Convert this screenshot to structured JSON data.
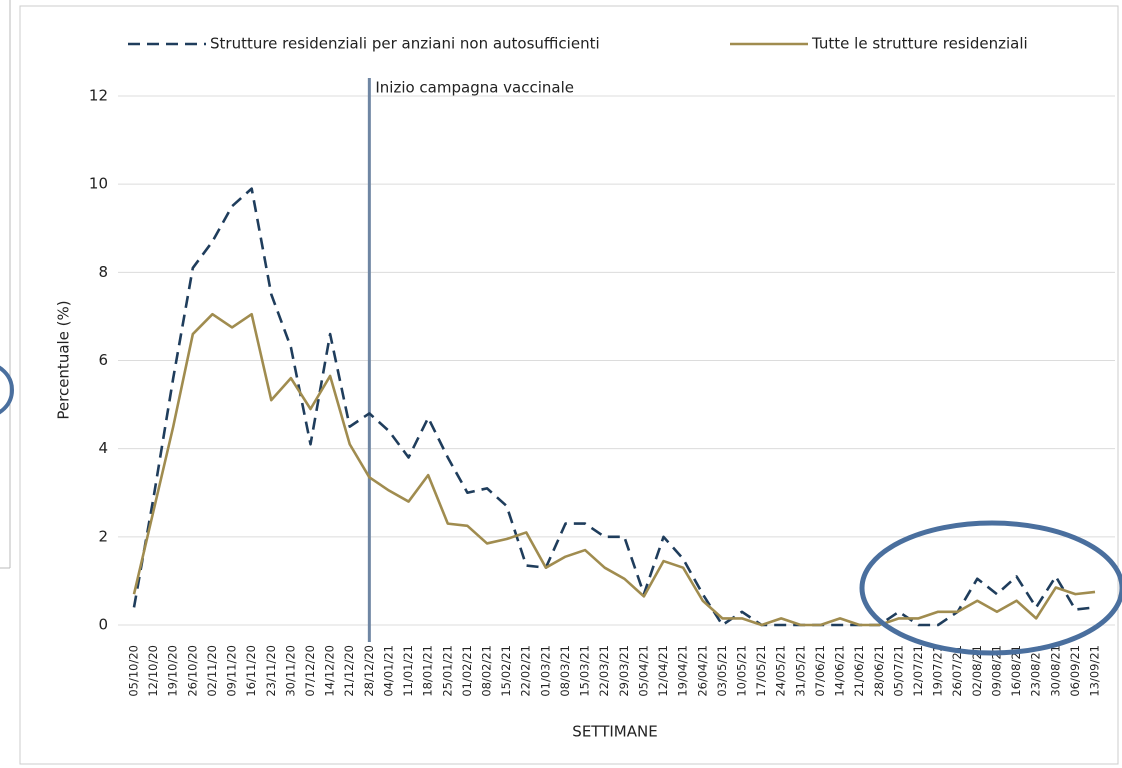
{
  "chart_data": {
    "type": "line",
    "categories": [
      "05/10/20",
      "12/10/20",
      "19/10/20",
      "26/10/20",
      "02/11/20",
      "09/11/20",
      "16/11/20",
      "23/11/20",
      "30/11/20",
      "07/12/20",
      "14/12/20",
      "21/12/20",
      "28/12/20",
      "04/01/21",
      "11/01/21",
      "18/01/21",
      "25/01/21",
      "01/02/21",
      "08/02/21",
      "15/02/21",
      "22/02/21",
      "01/03/21",
      "08/03/21",
      "15/03/21",
      "22/03/21",
      "29/03/21",
      "05/04/21",
      "12/04/21",
      "19/04/21",
      "26/04/21",
      "03/05/21",
      "10/05/21",
      "17/05/21",
      "24/05/21",
      "31/05/21",
      "07/06/21",
      "14/06/21",
      "21/06/21",
      "28/06/21",
      "05/07/21",
      "12/07/21",
      "19/07/21",
      "26/07/21",
      "02/08/21",
      "09/08/21",
      "16/08/21",
      "23/08/21",
      "30/08/21",
      "06/09/21",
      "13/09/21"
    ],
    "series": [
      {
        "name": "Strutture residenziali per anziani non autosufficienti",
        "color": "#1f3d5c",
        "dashed": true,
        "values": [
          0.4,
          2.9,
          5.6,
          8.1,
          8.7,
          9.5,
          9.9,
          7.5,
          6.3,
          4.1,
          6.6,
          4.5,
          4.8,
          4.4,
          3.8,
          4.7,
          3.8,
          3.0,
          3.1,
          2.7,
          1.35,
          1.3,
          2.3,
          2.3,
          2.0,
          2.0,
          0.7,
          2.0,
          1.5,
          0.7,
          0.0,
          0.3,
          0.0,
          0.0,
          0.0,
          0.0,
          0.0,
          0.0,
          0.0,
          0.3,
          0.0,
          0.0,
          0.3,
          1.05,
          0.7,
          1.1,
          0.4,
          1.1,
          0.35,
          0.4
        ]
      },
      {
        "name": "Tutte le strutture residenziali",
        "color": "#a08c4f",
        "dashed": false,
        "values": [
          0.7,
          2.6,
          4.5,
          6.6,
          7.05,
          6.75,
          7.05,
          5.1,
          5.6,
          4.9,
          5.65,
          4.1,
          3.35,
          3.05,
          2.8,
          3.4,
          2.3,
          2.25,
          1.85,
          1.95,
          2.1,
          1.3,
          1.55,
          1.7,
          1.3,
          1.05,
          0.65,
          1.45,
          1.3,
          0.55,
          0.15,
          0.15,
          0.0,
          0.15,
          0.0,
          0.0,
          0.15,
          0.0,
          0.0,
          0.15,
          0.15,
          0.3,
          0.3,
          0.55,
          0.3,
          0.55,
          0.15,
          0.85,
          0.7,
          0.75
        ]
      }
    ],
    "x_label": "SETTIMANE",
    "y_label": "Percentuale (%)",
    "ylim": [
      0,
      12
    ],
    "yticks": [
      0,
      2,
      4,
      6,
      8,
      10,
      12
    ],
    "grid": true,
    "legend": "top",
    "annotations": [
      {
        "text": "Inizio campagna vaccinale",
        "at": "28/12/20",
        "color": "#6f86a3"
      }
    ]
  }
}
